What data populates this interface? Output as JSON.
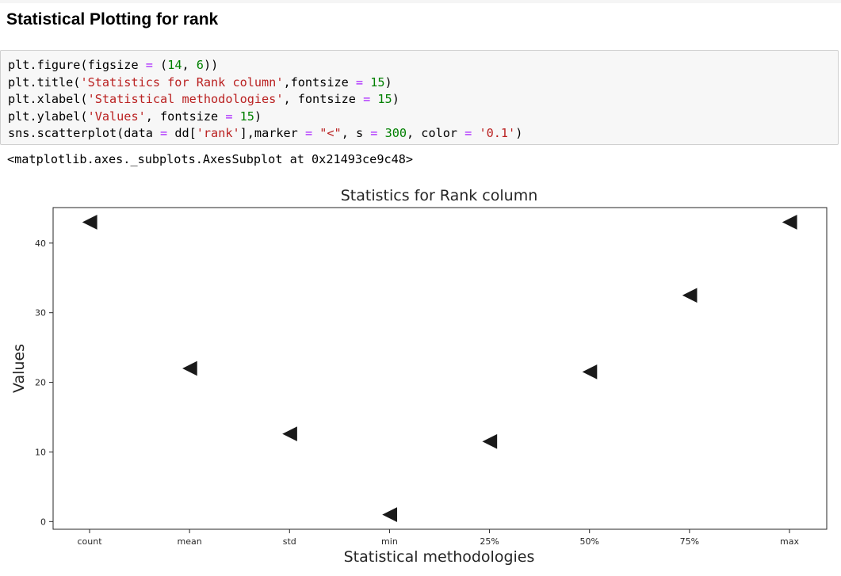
{
  "section_title": "Statistical Plotting for rank",
  "code_cell": {
    "lines": [
      [
        {
          "t": "plt.figure(figsize ",
          "c": "plain"
        },
        {
          "t": "=",
          "c": "op"
        },
        {
          "t": " (",
          "c": "plain"
        },
        {
          "t": "14",
          "c": "num"
        },
        {
          "t": ", ",
          "c": "plain"
        },
        {
          "t": "6",
          "c": "num"
        },
        {
          "t": "))",
          "c": "plain"
        }
      ],
      [
        {
          "t": "plt.title(",
          "c": "plain"
        },
        {
          "t": "'Statistics for Rank column'",
          "c": "str"
        },
        {
          "t": ",fontsize ",
          "c": "plain"
        },
        {
          "t": "=",
          "c": "op"
        },
        {
          "t": " ",
          "c": "plain"
        },
        {
          "t": "15",
          "c": "num"
        },
        {
          "t": ")",
          "c": "plain"
        }
      ],
      [
        {
          "t": "plt.xlabel(",
          "c": "plain"
        },
        {
          "t": "'Statistical methodologies'",
          "c": "str"
        },
        {
          "t": ", fontsize ",
          "c": "plain"
        },
        {
          "t": "=",
          "c": "op"
        },
        {
          "t": " ",
          "c": "plain"
        },
        {
          "t": "15",
          "c": "num"
        },
        {
          "t": ")",
          "c": "plain"
        }
      ],
      [
        {
          "t": "plt.ylabel(",
          "c": "plain"
        },
        {
          "t": "'Values'",
          "c": "str"
        },
        {
          "t": ", fontsize ",
          "c": "plain"
        },
        {
          "t": "=",
          "c": "op"
        },
        {
          "t": " ",
          "c": "plain"
        },
        {
          "t": "15",
          "c": "num"
        },
        {
          "t": ")",
          "c": "plain"
        }
      ],
      [
        {
          "t": "sns.scatterplot(data ",
          "c": "plain"
        },
        {
          "t": "=",
          "c": "op"
        },
        {
          "t": " dd[",
          "c": "plain"
        },
        {
          "t": "'rank'",
          "c": "str"
        },
        {
          "t": "],marker ",
          "c": "plain"
        },
        {
          "t": "=",
          "c": "op"
        },
        {
          "t": " ",
          "c": "plain"
        },
        {
          "t": "\"<\"",
          "c": "str"
        },
        {
          "t": ", s ",
          "c": "plain"
        },
        {
          "t": "=",
          "c": "op"
        },
        {
          "t": " ",
          "c": "plain"
        },
        {
          "t": "300",
          "c": "num"
        },
        {
          "t": ", color ",
          "c": "plain"
        },
        {
          "t": "=",
          "c": "op"
        },
        {
          "t": " ",
          "c": "plain"
        },
        {
          "t": "'0.1'",
          "c": "str"
        },
        {
          "t": ")",
          "c": "plain"
        }
      ]
    ]
  },
  "output_text": "<matplotlib.axes._subplots.AxesSubplot at 0x21493ce9c48>",
  "colors": {
    "marker": "#1a1a1a",
    "operator": "#aa22ff",
    "number": "#008000",
    "string": "#ba2121"
  },
  "chart_data": {
    "type": "scatter",
    "title": "Statistics for Rank column",
    "xlabel": "Statistical methodologies",
    "ylabel": "Values",
    "marker": "left-triangle",
    "categories": [
      "count",
      "mean",
      "std",
      "min",
      "25%",
      "50%",
      "75%",
      "max"
    ],
    "values": [
      43,
      22,
      12.6,
      1,
      11.5,
      21.5,
      32.5,
      43
    ],
    "yticks": [
      0,
      10,
      20,
      30,
      40
    ],
    "ylim": [
      -1.1,
      45.1
    ],
    "grid": false,
    "legend": "none"
  }
}
